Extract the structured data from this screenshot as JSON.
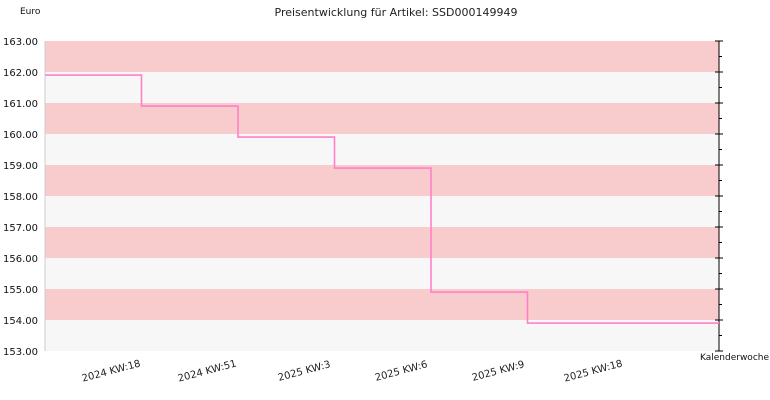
{
  "chart_data": {
    "type": "line",
    "step": true,
    "title": "Preisentwicklung für Artikel: SSD000149949",
    "ylabel": "Euro",
    "xlabel": "Kalenderwoche",
    "ylim": [
      153,
      163
    ],
    "yticks": [
      153,
      154,
      155,
      156,
      157,
      158,
      159,
      160,
      161,
      162,
      163
    ],
    "ytick_labels": [
      "153.00",
      "154.00",
      "155.00",
      "156.00",
      "157.00",
      "158.00",
      "159.00",
      "160.00",
      "161.00",
      "162.00",
      "163.00"
    ],
    "xtick_labels": [
      "2024 KW:18",
      "2024 KW:51",
      "2025 KW:3",
      "2025 KW:6",
      "2025 KW:9",
      "2025 KW:18"
    ],
    "grid": "alternating horizontal bands",
    "colors": {
      "line": "#ff80c8",
      "band_a": "#f8cccc",
      "band_b": "#f7f7f7",
      "axis": "#000000"
    },
    "series": [
      {
        "x": [
          "2024 KW:18",
          "2024 KW:51",
          "2025 KW:3",
          "2025 KW:6",
          "2025 KW:9",
          "2025 KW:18"
        ],
        "values": [
          161.9,
          160.9,
          159.9,
          158.9,
          154.9,
          153.9
        ]
      }
    ]
  }
}
